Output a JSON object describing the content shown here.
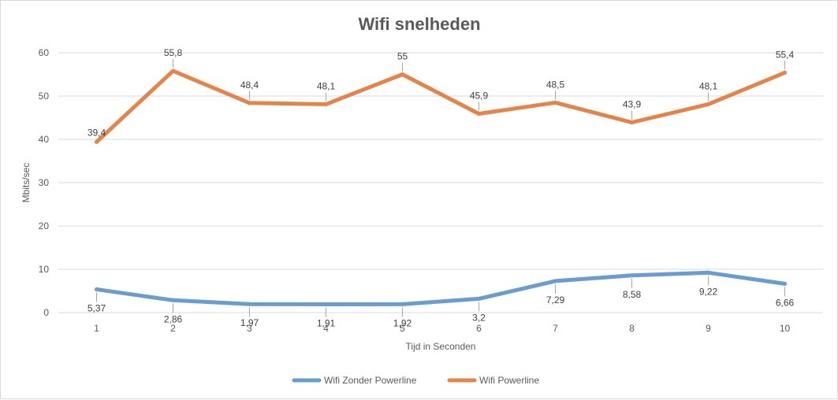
{
  "chart_data": {
    "type": "line",
    "title": "Wifi snelheden",
    "xlabel": "Tijd in Seconden",
    "ylabel": "Mbits/sec",
    "ylim": [
      0,
      60
    ],
    "yticks": [
      0,
      10,
      20,
      30,
      40,
      50,
      60
    ],
    "categories": [
      "1",
      "2",
      "3",
      "4",
      "5",
      "6",
      "7",
      "8",
      "9",
      "10"
    ],
    "grid": true,
    "legend_position": "bottom",
    "series": [
      {
        "name": "Wifi Zonder Powerline",
        "color": "#6a9ccf",
        "values": [
          5.37,
          2.86,
          1.97,
          1.91,
          1.92,
          3.2,
          7.29,
          8.58,
          9.22,
          6.66
        ],
        "labels": [
          "5,37",
          "2,86",
          "1,97",
          "1,91",
          "1,92",
          "3,2",
          "7,29",
          "8,58",
          "9,22",
          "6,66"
        ]
      },
      {
        "name": "Wifi Powerline",
        "color": "#e3854a",
        "values": [
          39.4,
          55.8,
          48.4,
          48.1,
          55,
          45.9,
          48.5,
          43.9,
          48.1,
          55.4
        ],
        "labels": [
          "39,4",
          "55,8",
          "48,4",
          "48,1",
          "55",
          "45,9",
          "48,5",
          "43,9",
          "48,1",
          "55,4"
        ]
      }
    ]
  }
}
